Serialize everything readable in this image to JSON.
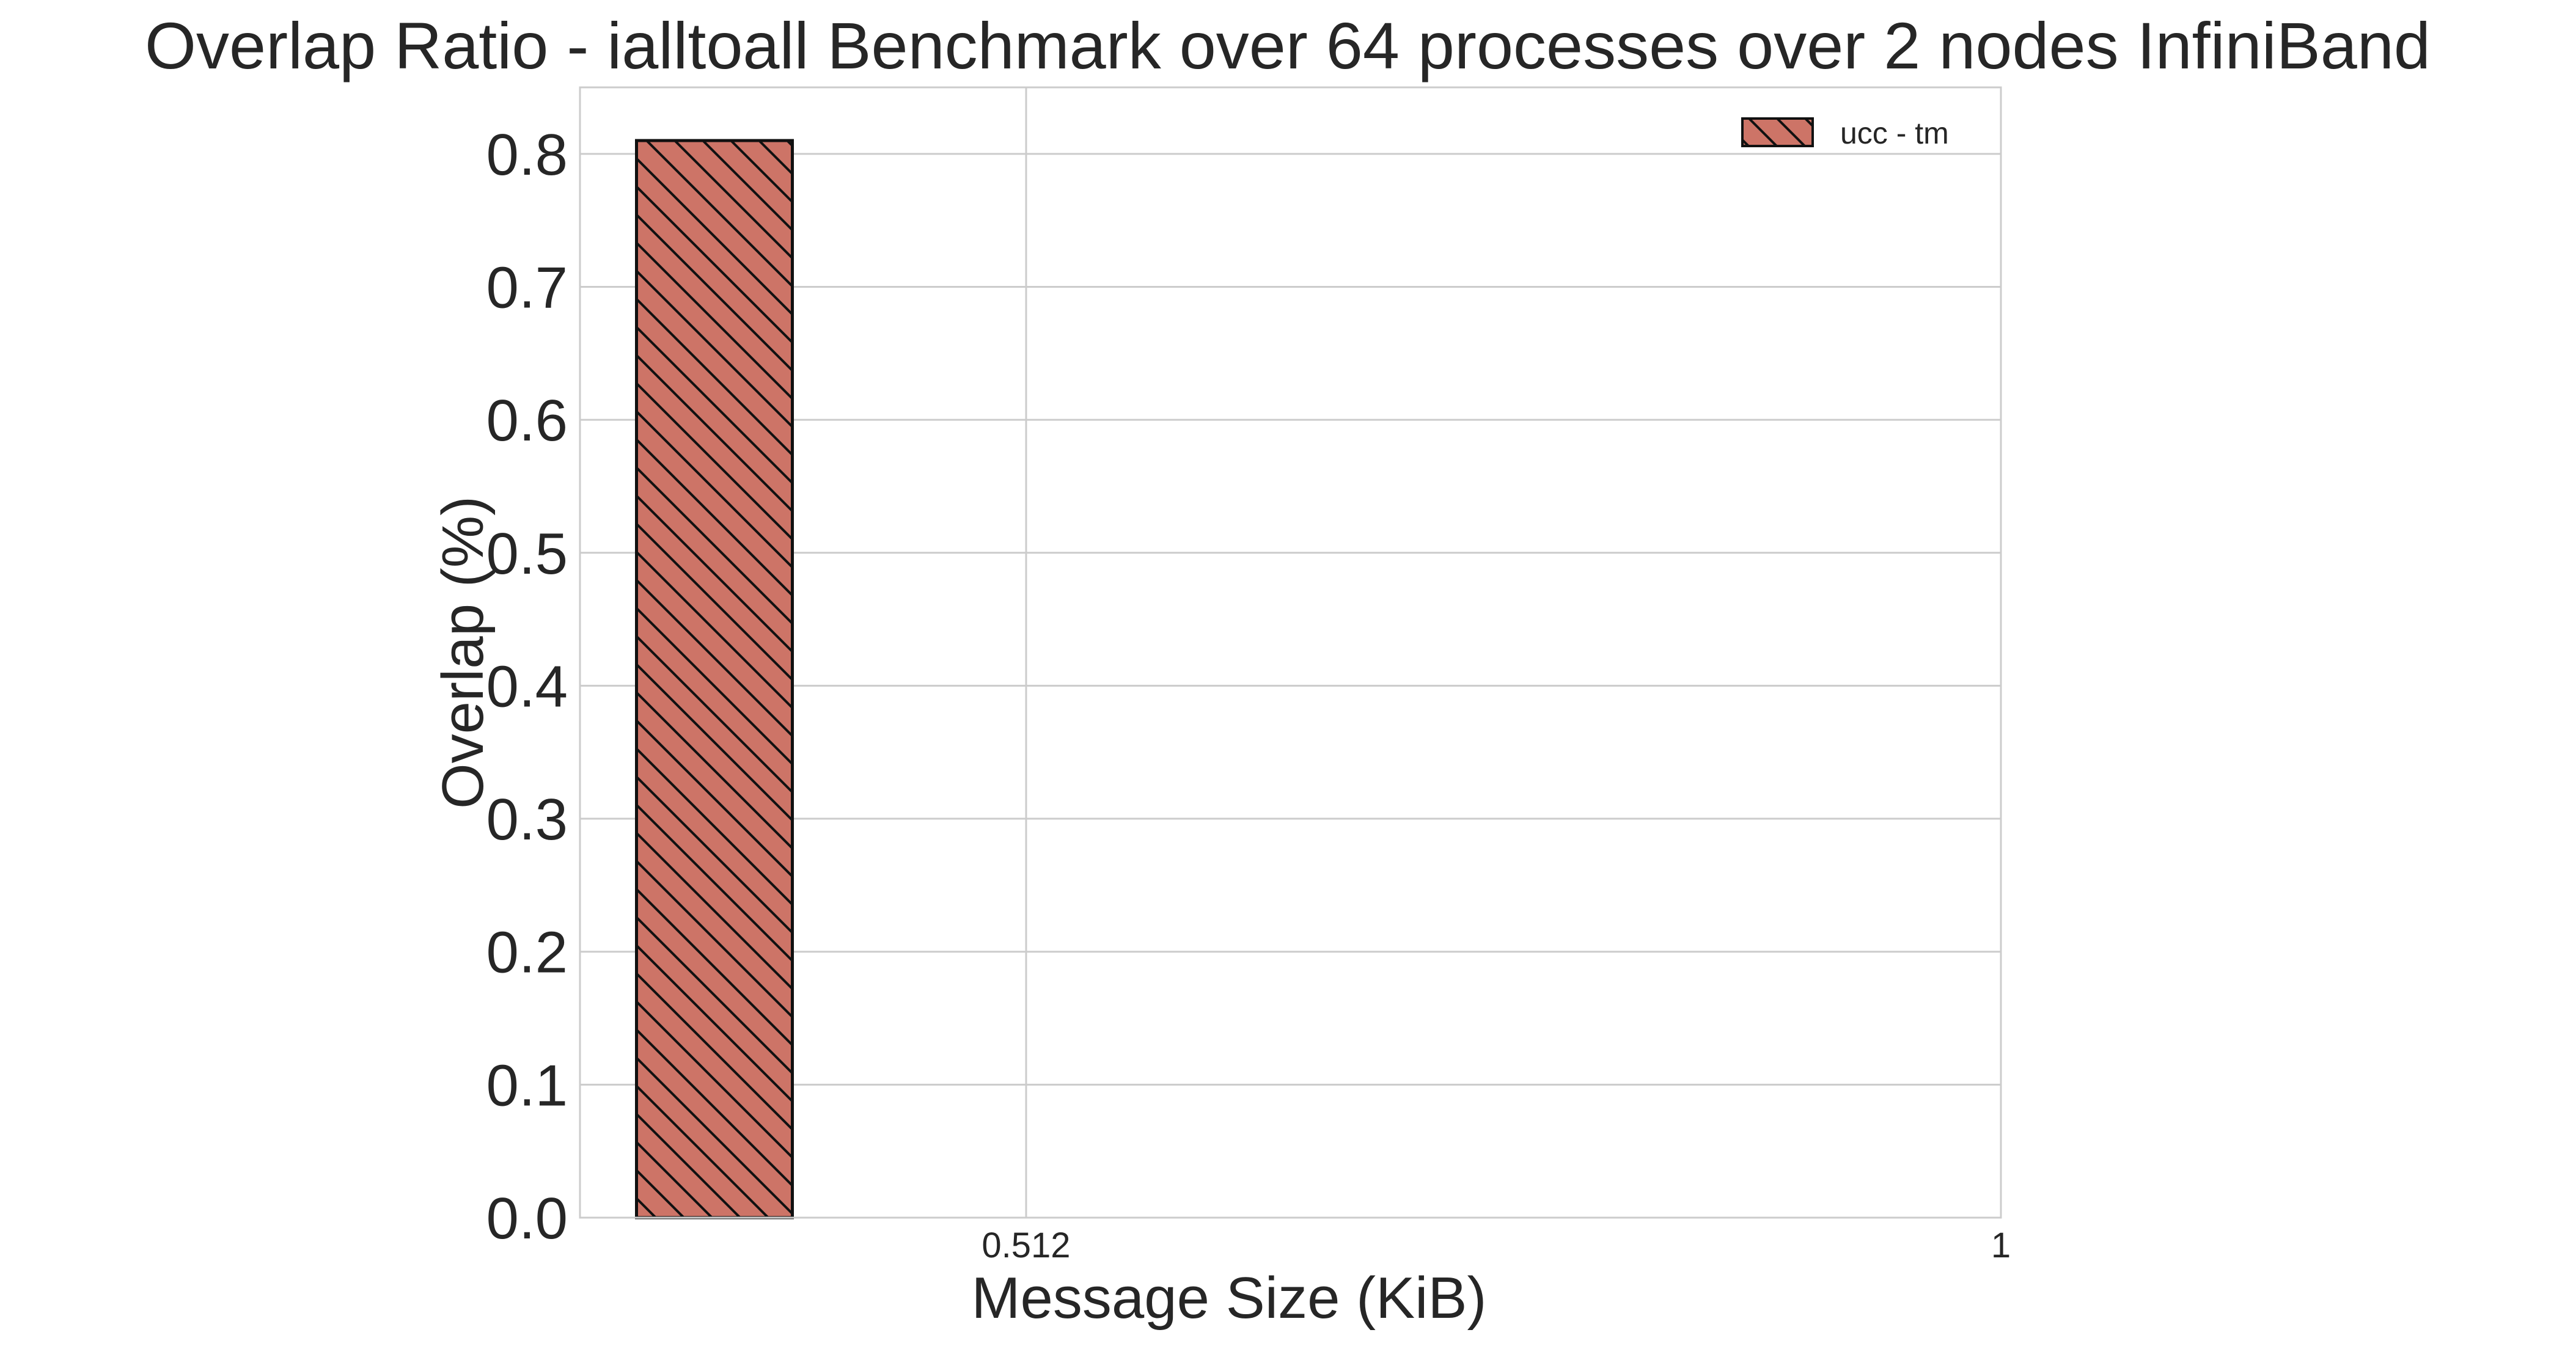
{
  "chart_data": {
    "type": "bar",
    "title": "Overlap Ratio - ialltoall Benchmark over 64 processes over 2 nodes InfiniBand",
    "xlabel": "Message Size (KiB)",
    "ylabel": "Overlap (%)",
    "x_ticks": [
      "0.512",
      "1"
    ],
    "y_ticks": [
      "0.0",
      "0.1",
      "0.2",
      "0.3",
      "0.4",
      "0.5",
      "0.6",
      "0.7",
      "0.8"
    ],
    "ylim": [
      0,
      0.85
    ],
    "grid": true,
    "legend_position": "top-right",
    "series": [
      {
        "name": "ucc - tm",
        "color": "#cd7467",
        "hatch": "diagonal",
        "points": [
          {
            "x": "0.512",
            "value": 0.81
          },
          {
            "x": "1",
            "value": 0.0
          }
        ]
      }
    ]
  }
}
